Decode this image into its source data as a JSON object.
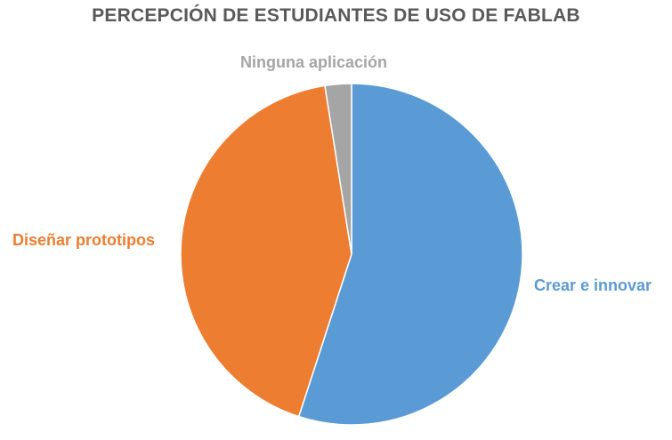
{
  "chart_data": {
    "type": "pie",
    "title": "PERCEPCIÓN DE ESTUDIANTES DE USO DE FABLAB",
    "start_angle_deg": 0,
    "direction": "clockwise",
    "slices": [
      {
        "label": "Crear e innovar",
        "value": 55,
        "color": "#5B9BD5"
      },
      {
        "label": "Diseñar prototipos",
        "value": 42.5,
        "color": "#ED7D31"
      },
      {
        "label": "Ninguna aplicación",
        "value": 2.5,
        "color": "#A5A5A5"
      }
    ]
  }
}
